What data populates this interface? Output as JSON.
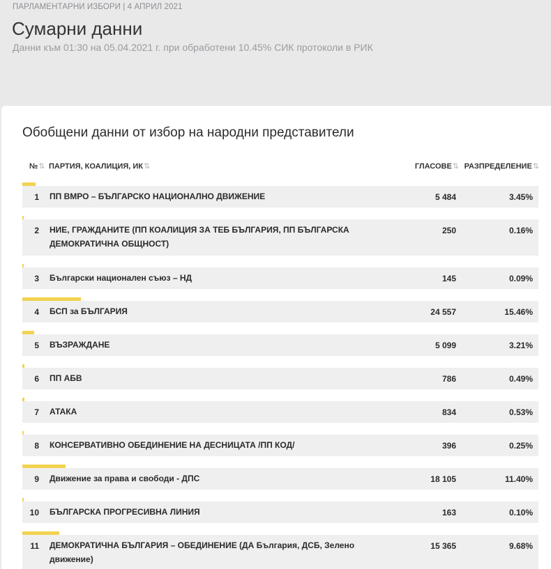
{
  "header": {
    "overline": "ПАРЛАМЕНТАРНИ ИЗБОРИ | 4 АПРИЛ 2021",
    "title": "Сумарни данни",
    "subtitle": "Данни към 01:30 на 05.04.2021 г. при обработени 10.45% СИК протоколи в РИК"
  },
  "card": {
    "title": "Обобщени данни от избор на народни представители",
    "columns": {
      "num": "№",
      "party": "ПАРТИЯ, КОАЛИЦИЯ, ИК",
      "votes": "ГЛАСОВЕ",
      "share": "РАЗПРЕДЕЛЕНИЕ",
      "sort_icon": "⇅"
    },
    "accent_color": "#f2d250",
    "rows": [
      {
        "num": "1",
        "party": "ПП ВМРО – БЪЛГАРСКО НАЦИОНАЛНО ДВИЖЕНИЕ",
        "votes": "5 484",
        "share": "3.45%",
        "share_value": 3.45
      },
      {
        "num": "2",
        "party": "НИЕ, ГРАЖДАНИТЕ (ПП КОАЛИЦИЯ ЗА ТЕБ БЪЛГАРИЯ, ПП БЪЛГАРСКА ДЕМОКРАТИЧНА ОБЩНОСТ)",
        "votes": "250",
        "share": "0.16%",
        "share_value": 0.16
      },
      {
        "num": "3",
        "party": "Български национален съюз – НД",
        "votes": "145",
        "share": "0.09%",
        "share_value": 0.09
      },
      {
        "num": "4",
        "party": "БСП за БЪЛГАРИЯ",
        "votes": "24 557",
        "share": "15.46%",
        "share_value": 15.46
      },
      {
        "num": "5",
        "party": "ВЪЗРАЖДАНЕ",
        "votes": "5 099",
        "share": "3.21%",
        "share_value": 3.21
      },
      {
        "num": "6",
        "party": "ПП АБВ",
        "votes": "786",
        "share": "0.49%",
        "share_value": 0.49
      },
      {
        "num": "7",
        "party": "АТАКА",
        "votes": "834",
        "share": "0.53%",
        "share_value": 0.53
      },
      {
        "num": "8",
        "party": "КОНСЕРВАТИВНО ОБЕДИНЕНИЕ НА ДЕСНИЦАТА /ПП КОД/",
        "votes": "396",
        "share": "0.25%",
        "share_value": 0.25
      },
      {
        "num": "9",
        "party": "Движение за права и свободи - ДПС",
        "votes": "18 105",
        "share": "11.40%",
        "share_value": 11.4
      },
      {
        "num": "10",
        "party": "БЪЛГАРСКА ПРОГРЕСИВНА ЛИНИЯ",
        "votes": "163",
        "share": "0.10%",
        "share_value": 0.1
      },
      {
        "num": "11",
        "party": "ДЕМОКРАТИЧНА БЪЛГАРИЯ – ОБЕДИНЕНИЕ (ДА България, ДСБ, Зелено движение)",
        "votes": "15 365",
        "share": "9.68%",
        "share_value": 9.68
      }
    ]
  }
}
